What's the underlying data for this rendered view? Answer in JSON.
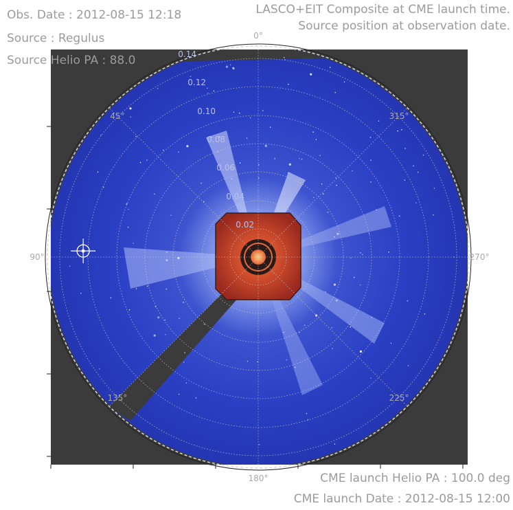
{
  "header_left": {
    "obs_date": "Obs. Date : 2012-08-15 12:18",
    "source": "Source : Regulus",
    "source_pa": "Source Helio PA : 88.0"
  },
  "header_right": {
    "line1": "LASCO+EIT Composite at CME launch time.",
    "line2": "Source position at observation date."
  },
  "footer_right": {
    "pa": "CME launch Helio PA : 100.0 deg",
    "date": "CME launch Date : 2012-08-15 12:00"
  },
  "polar": {
    "angle_labels": [
      {
        "deg": 0,
        "text": "0°"
      },
      {
        "deg": 45,
        "text": "45°"
      },
      {
        "deg": 90,
        "text": "90°"
      },
      {
        "deg": 135,
        "text": "135°"
      },
      {
        "deg": 180,
        "text": "180°"
      },
      {
        "deg": 225,
        "text": "225°"
      },
      {
        "deg": 270,
        "text": "270°"
      },
      {
        "deg": 315,
        "text": "315°"
      }
    ],
    "radial_labels": [
      "0.02",
      "0.04",
      "0.06",
      "0.08",
      "0.10",
      "0.12",
      "0.14"
    ],
    "source_pa_deg": 88.0
  },
  "colors": {
    "background": "#3b3b3b",
    "sky": "#2a3ec8",
    "c2_occulter": "#b53424",
    "grid": "#c8c8c8",
    "text": "#9b9b9b"
  }
}
